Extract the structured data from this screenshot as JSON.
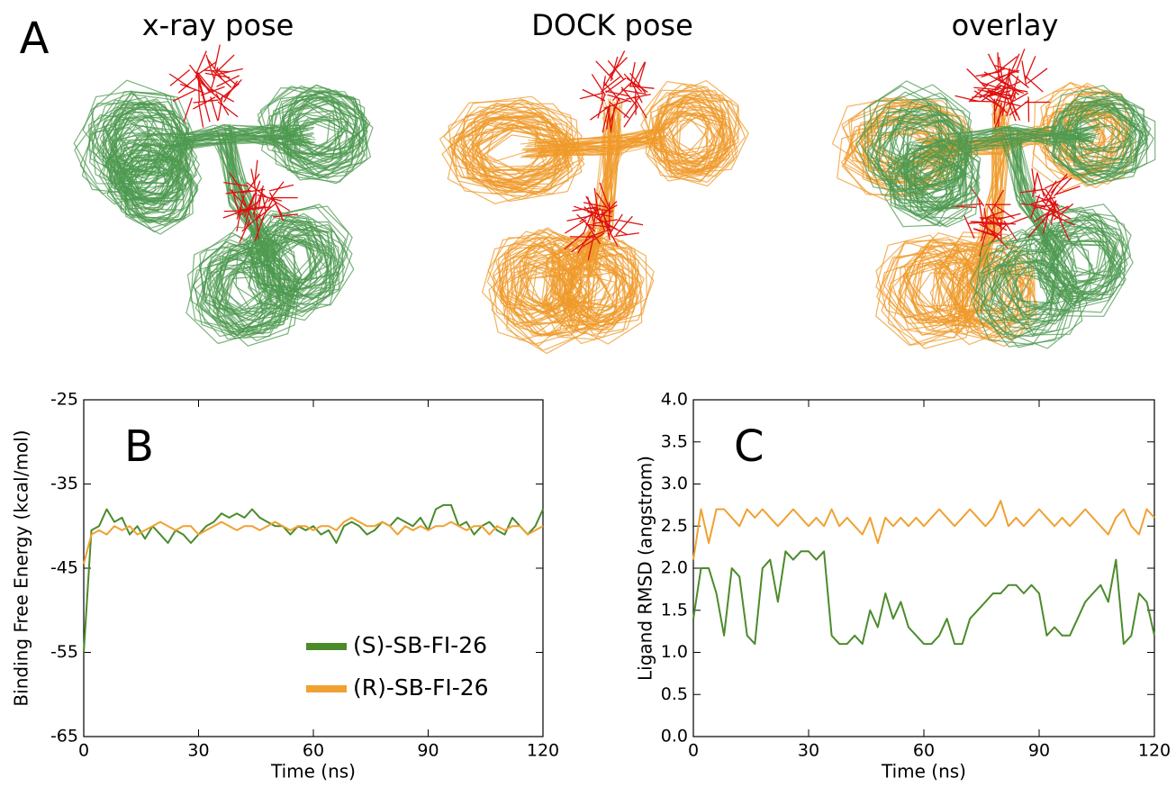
{
  "panel_a": {
    "label": "A",
    "titles": [
      "x-ray pose",
      "DOCK pose",
      "overlay"
    ]
  },
  "chart_data": [
    {
      "type": "line",
      "annotation": "B",
      "xlabel": "Time (ns)",
      "ylabel": "Binding Free Energy (kcal/mol)",
      "xlim": [
        0,
        120
      ],
      "xticks": [
        0,
        30,
        60,
        90,
        120
      ],
      "ylim": [
        -65,
        -25
      ],
      "yticks": [
        -65,
        -55,
        -45,
        -35,
        -25
      ],
      "legend": "lower center",
      "x": [
        0,
        2,
        4,
        6,
        8,
        10,
        12,
        14,
        16,
        18,
        20,
        22,
        24,
        26,
        28,
        30,
        32,
        34,
        36,
        38,
        40,
        42,
        44,
        46,
        48,
        50,
        52,
        54,
        56,
        58,
        60,
        62,
        64,
        66,
        68,
        70,
        72,
        74,
        76,
        78,
        80,
        82,
        84,
        86,
        88,
        90,
        92,
        94,
        96,
        98,
        100,
        102,
        104,
        106,
        108,
        110,
        112,
        114,
        116,
        118,
        120
      ],
      "series": [
        {
          "name": "(S)-SB-FI-26",
          "color": "#4b8b2b",
          "values": [
            -55,
            -40.5,
            -40,
            -38,
            -39.5,
            -39,
            -41,
            -40,
            -41.5,
            -40,
            -41,
            -42,
            -40.5,
            -41,
            -42,
            -41,
            -40,
            -39.5,
            -38.5,
            -39,
            -38.5,
            -39,
            -38,
            -39,
            -39.5,
            -40,
            -40,
            -41,
            -40,
            -40.5,
            -40,
            -41,
            -40.5,
            -42,
            -40,
            -39.5,
            -40,
            -41,
            -40.5,
            -39.5,
            -40,
            -39,
            -39.5,
            -40,
            -39,
            -40.5,
            -38,
            -37.5,
            -37.5,
            -40,
            -39.5,
            -41,
            -40,
            -39.5,
            -40.5,
            -41,
            -39,
            -40,
            -41,
            -40,
            -38
          ]
        },
        {
          "name": "(R)-SB-FI-26",
          "color": "#f0a132",
          "values": [
            -44.5,
            -41,
            -40.5,
            -41,
            -40,
            -40.5,
            -40,
            -41,
            -40.5,
            -40,
            -39.5,
            -40,
            -40.5,
            -40,
            -40,
            -41,
            -40.5,
            -40,
            -39.5,
            -40,
            -40.5,
            -40,
            -40,
            -40.5,
            -40,
            -39.5,
            -40,
            -40.5,
            -40,
            -40,
            -40.5,
            -40,
            -40,
            -40.5,
            -39.5,
            -39,
            -39.5,
            -40,
            -40,
            -39.5,
            -40,
            -41,
            -40,
            -40.5,
            -40,
            -40.5,
            -40,
            -40,
            -39.5,
            -40,
            -40.5,
            -40,
            -40,
            -41,
            -40,
            -40.5,
            -40,
            -40,
            -41,
            -40.5,
            -40
          ]
        }
      ]
    },
    {
      "type": "line",
      "annotation": "C",
      "xlabel": "Time (ns)",
      "ylabel": "Ligand RMSD (angstrom)",
      "xlim": [
        0,
        120
      ],
      "xticks": [
        0,
        30,
        60,
        90,
        120
      ],
      "ylim": [
        0,
        4
      ],
      "yticks": [
        {
          "value": 0,
          "label": "0.0"
        },
        0.5,
        {
          "value": 1,
          "label": "1.0"
        },
        1.5,
        {
          "value": 2,
          "label": "2.0"
        },
        2.5,
        {
          "value": 3,
          "label": "3.0"
        },
        3.5,
        {
          "value": 4,
          "label": "4.0"
        }
      ],
      "x": [
        0,
        2,
        4,
        6,
        8,
        10,
        12,
        14,
        16,
        18,
        20,
        22,
        24,
        26,
        28,
        30,
        32,
        34,
        36,
        38,
        40,
        42,
        44,
        46,
        48,
        50,
        52,
        54,
        56,
        58,
        60,
        62,
        64,
        66,
        68,
        70,
        72,
        74,
        76,
        78,
        80,
        82,
        84,
        86,
        88,
        90,
        92,
        94,
        96,
        98,
        100,
        102,
        104,
        106,
        108,
        110,
        112,
        114,
        116,
        118,
        120
      ],
      "series": [
        {
          "color": "#4b8b2b",
          "values": [
            1.4,
            2.0,
            2.0,
            1.7,
            1.2,
            2.0,
            1.9,
            1.2,
            1.1,
            2.0,
            2.1,
            1.6,
            2.2,
            2.1,
            2.2,
            2.2,
            2.1,
            2.2,
            1.2,
            1.1,
            1.1,
            1.2,
            1.1,
            1.5,
            1.3,
            1.7,
            1.4,
            1.6,
            1.3,
            1.2,
            1.1,
            1.1,
            1.2,
            1.4,
            1.1,
            1.1,
            1.4,
            1.5,
            1.6,
            1.7,
            1.7,
            1.8,
            1.8,
            1.7,
            1.8,
            1.7,
            1.2,
            1.3,
            1.2,
            1.2,
            1.4,
            1.6,
            1.7,
            1.8,
            1.6,
            2.1,
            1.1,
            1.2,
            1.7,
            1.6,
            1.2
          ]
        },
        {
          "color": "#f0a132",
          "values": [
            2.1,
            2.7,
            2.3,
            2.7,
            2.7,
            2.6,
            2.5,
            2.7,
            2.6,
            2.7,
            2.6,
            2.5,
            2.6,
            2.7,
            2.6,
            2.5,
            2.6,
            2.5,
            2.7,
            2.5,
            2.6,
            2.5,
            2.4,
            2.6,
            2.3,
            2.6,
            2.5,
            2.6,
            2.5,
            2.6,
            2.5,
            2.6,
            2.7,
            2.6,
            2.5,
            2.6,
            2.7,
            2.6,
            2.5,
            2.6,
            2.8,
            2.5,
            2.6,
            2.5,
            2.6,
            2.7,
            2.6,
            2.5,
            2.6,
            2.5,
            2.6,
            2.7,
            2.6,
            2.5,
            2.4,
            2.6,
            2.7,
            2.5,
            2.4,
            2.7,
            2.6
          ]
        }
      ]
    }
  ]
}
